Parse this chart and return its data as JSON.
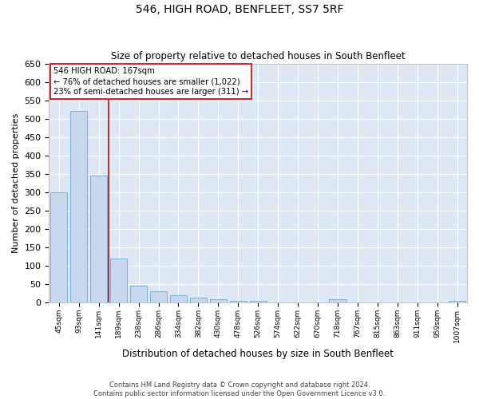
{
  "title1": "546, HIGH ROAD, BENFLEET, SS7 5RF",
  "title2": "Size of property relative to detached houses in South Benfleet",
  "xlabel": "Distribution of detached houses by size in South Benfleet",
  "ylabel": "Number of detached properties",
  "footer": "Contains HM Land Registry data © Crown copyright and database right 2024.\nContains public sector information licensed under the Open Government Licence v3.0.",
  "bar_color": "#c5d8ee",
  "bar_edge_color": "#7aafd4",
  "background_color": "#dde8f5",
  "grid_color": "#ffffff",
  "categories": [
    "45sqm",
    "93sqm",
    "141sqm",
    "189sqm",
    "238sqm",
    "286sqm",
    "334sqm",
    "382sqm",
    "430sqm",
    "478sqm",
    "526sqm",
    "574sqm",
    "622sqm",
    "670sqm",
    "718sqm",
    "767sqm",
    "815sqm",
    "863sqm",
    "911sqm",
    "959sqm",
    "1007sqm"
  ],
  "values": [
    300,
    520,
    345,
    120,
    45,
    30,
    20,
    13,
    8,
    5,
    5,
    0,
    0,
    0,
    8,
    0,
    0,
    0,
    0,
    0,
    5
  ],
  "red_line_x": 2.5,
  "annotation_text": "546 HIGH ROAD: 167sqm\n← 76% of detached houses are smaller (1,022)\n23% of semi-detached houses are larger (311) →",
  "ylim": [
    0,
    650
  ],
  "yticks": [
    0,
    50,
    100,
    150,
    200,
    250,
    300,
    350,
    400,
    450,
    500,
    550,
    600,
    650
  ]
}
